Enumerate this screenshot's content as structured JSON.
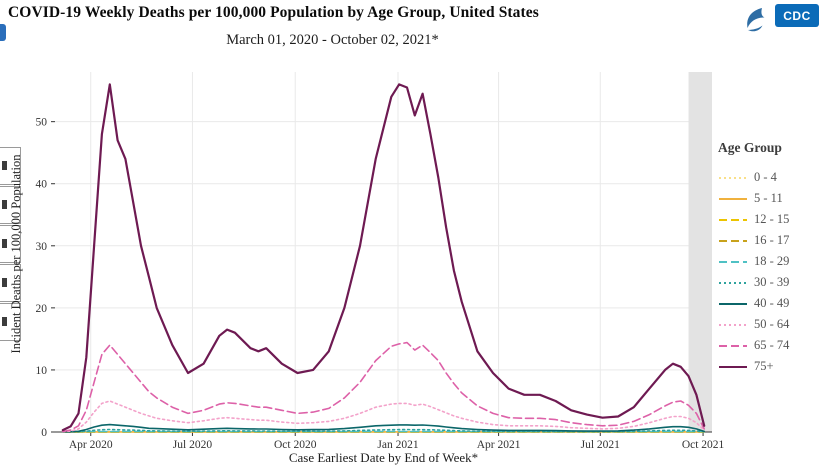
{
  "header": {
    "title": "COVID-19 Weekly Deaths per 100,000 Population by Age Group, United States",
    "subtitle": "March 01, 2020 - October 02, 2021*",
    "cdc_logo_text": "CDC"
  },
  "colors": {
    "cdc_blue": "#0b6bb8",
    "hhs_blue": "#2e6da4",
    "incomplete_band": "#e3e3e3",
    "grid": "#e9e9e9",
    "axis": "#333333"
  },
  "chart_data": {
    "type": "line",
    "title": "COVID-19 Weekly Deaths per 100,000 Population by Age Group, United States",
    "subtitle": "March 01, 2020 - October 02, 2021*",
    "xlabel": "Case Earliest Date by End of Week*",
    "ylabel": "Incident Deaths per 100,000 Population",
    "legend_title": "Age Group",
    "legend_position": "right",
    "grid": true,
    "ylim": [
      0,
      58
    ],
    "yticks": [
      0,
      10,
      20,
      30,
      40,
      50
    ],
    "x_domain": [
      "2020-02-29",
      "2021-10-09"
    ],
    "xticks": [
      {
        "date": "2020-04-01",
        "label": "Apr 2020"
      },
      {
        "date": "2020-07-01",
        "label": "Jul 2020"
      },
      {
        "date": "2020-10-01",
        "label": "Oct 2020"
      },
      {
        "date": "2021-01-01",
        "label": "Jan 2021"
      },
      {
        "date": "2021-04-01",
        "label": "Apr 2021"
      },
      {
        "date": "2021-07-01",
        "label": "Jul 2021"
      },
      {
        "date": "2021-10-01",
        "label": "Oct 2021"
      }
    ],
    "incomplete_band": {
      "start": "2021-09-18",
      "end": "2021-10-09"
    },
    "dates": [
      "2020-03-07",
      "2020-03-14",
      "2020-03-21",
      "2020-03-28",
      "2020-04-04",
      "2020-04-11",
      "2020-04-18",
      "2020-04-25",
      "2020-05-02",
      "2020-05-09",
      "2020-05-16",
      "2020-05-23",
      "2020-05-30",
      "2020-06-13",
      "2020-06-27",
      "2020-07-11",
      "2020-07-25",
      "2020-08-01",
      "2020-08-08",
      "2020-08-22",
      "2020-08-29",
      "2020-09-05",
      "2020-09-19",
      "2020-10-03",
      "2020-10-17",
      "2020-10-31",
      "2020-11-14",
      "2020-11-28",
      "2020-12-12",
      "2020-12-26",
      "2021-01-02",
      "2021-01-09",
      "2021-01-16",
      "2021-01-23",
      "2021-01-30",
      "2021-02-06",
      "2021-02-13",
      "2021-02-20",
      "2021-02-27",
      "2021-03-13",
      "2021-03-27",
      "2021-04-10",
      "2021-04-24",
      "2021-05-08",
      "2021-05-22",
      "2021-06-05",
      "2021-06-19",
      "2021-07-03",
      "2021-07-17",
      "2021-07-31",
      "2021-08-14",
      "2021-08-28",
      "2021-09-04",
      "2021-09-11",
      "2021-09-18",
      "2021-09-25",
      "2021-10-02"
    ],
    "series": [
      {
        "name": "0 - 4",
        "color": "#f9e08a",
        "dash": "dotted",
        "values": 0.02
      },
      {
        "name": "5 - 11",
        "color": "#f0b13d",
        "dash": "solid",
        "values": 0.01
      },
      {
        "name": "12 - 15",
        "color": "#ecc400",
        "dash": "dashed",
        "values": 0.01
      },
      {
        "name": "16 - 17",
        "color": "#c8a21c",
        "dash": "dashed",
        "values": 0.04
      },
      {
        "name": "18 - 29",
        "color": "#4fc1c4",
        "dash": "dashed",
        "values": 0.08
      },
      {
        "name": "30 - 39",
        "color": "#2fa39e",
        "dash": "dotted",
        "values": [
          0,
          0.01,
          0.04,
          0.13,
          0.27,
          0.37,
          0.4,
          0.37,
          0.33,
          0.3,
          0.25,
          0.2,
          0.18,
          0.15,
          0.12,
          0.15,
          0.18,
          0.2,
          0.18,
          0.17,
          0.16,
          0.16,
          0.13,
          0.12,
          0.13,
          0.14,
          0.18,
          0.25,
          0.33,
          0.37,
          0.38,
          0.38,
          0.37,
          0.37,
          0.35,
          0.32,
          0.27,
          0.23,
          0.18,
          0.13,
          0.1,
          0.08,
          0.08,
          0.08,
          0.07,
          0.06,
          0.05,
          0.05,
          0.06,
          0.1,
          0.17,
          0.25,
          0.28,
          0.28,
          0.25,
          0.17,
          0.03
        ]
      },
      {
        "name": "40 - 49",
        "color": "#0b6669",
        "dash": "solid",
        "values": [
          0.01,
          0.04,
          0.12,
          0.4,
          0.8,
          1.1,
          1.2,
          1.1,
          1,
          0.9,
          0.75,
          0.6,
          0.55,
          0.45,
          0.35,
          0.45,
          0.55,
          0.6,
          0.55,
          0.5,
          0.48,
          0.48,
          0.4,
          0.35,
          0.38,
          0.42,
          0.55,
          0.75,
          1,
          1.1,
          1.15,
          1.15,
          1.1,
          1.12,
          1.05,
          0.95,
          0.8,
          0.68,
          0.55,
          0.4,
          0.3,
          0.25,
          0.25,
          0.25,
          0.22,
          0.18,
          0.15,
          0.15,
          0.18,
          0.3,
          0.5,
          0.75,
          0.85,
          0.85,
          0.75,
          0.5,
          0.1
        ]
      },
      {
        "name": "50 - 64",
        "color": "#f3a2ca",
        "dash": "dotted",
        "values": [
          0.05,
          0.15,
          0.5,
          1.6,
          3.2,
          4.6,
          5,
          4.5,
          4,
          3.5,
          3,
          2.6,
          2.2,
          1.8,
          1.5,
          1.8,
          2.2,
          2.3,
          2.2,
          2,
          1.9,
          1.9,
          1.6,
          1.4,
          1.5,
          1.7,
          2.2,
          3,
          4,
          4.5,
          4.6,
          4.6,
          4.3,
          4.5,
          4.1,
          3.6,
          3.1,
          2.6,
          2.2,
          1.6,
          1.2,
          1,
          1,
          1,
          0.9,
          0.7,
          0.6,
          0.5,
          0.6,
          0.9,
          1.5,
          2.2,
          2.5,
          2.5,
          2.2,
          1.5,
          0.3
        ]
      },
      {
        "name": "65 - 74",
        "color": "#dd61a8",
        "dash": "dashed",
        "values": [
          0.1,
          0.3,
          1,
          3.5,
          8,
          12.5,
          14,
          12.5,
          11,
          9.5,
          8,
          6.5,
          5.5,
          4,
          3,
          3.5,
          4.5,
          4.7,
          4.6,
          4.2,
          4,
          4,
          3.5,
          3,
          3.2,
          3.8,
          5.5,
          8,
          11.5,
          13.8,
          14.2,
          14.4,
          13.2,
          14,
          12.8,
          11.5,
          9.5,
          7.8,
          6.3,
          4.2,
          3,
          2.3,
          2.2,
          2.2,
          2,
          1.5,
          1.2,
          1,
          1.1,
          1.7,
          2.8,
          4.2,
          4.8,
          5,
          4.3,
          3,
          0.5
        ]
      },
      {
        "name": "75+",
        "color": "#6e1a52",
        "dash": "solid",
        "values": [
          0.3,
          0.9,
          3,
          12,
          30,
          48,
          56,
          47,
          44,
          37,
          30,
          25,
          20,
          14,
          9.5,
          11,
          15.5,
          16.5,
          16,
          13.5,
          13,
          13.5,
          11,
          9.5,
          10,
          13,
          20,
          30,
          44,
          54,
          56,
          55.5,
          51,
          54.5,
          48,
          41,
          33,
          26,
          21,
          13,
          9.5,
          7,
          6,
          6,
          5,
          3.5,
          2.8,
          2.3,
          2.5,
          4,
          7,
          10,
          11,
          10.5,
          9,
          6,
          1
        ]
      }
    ]
  }
}
